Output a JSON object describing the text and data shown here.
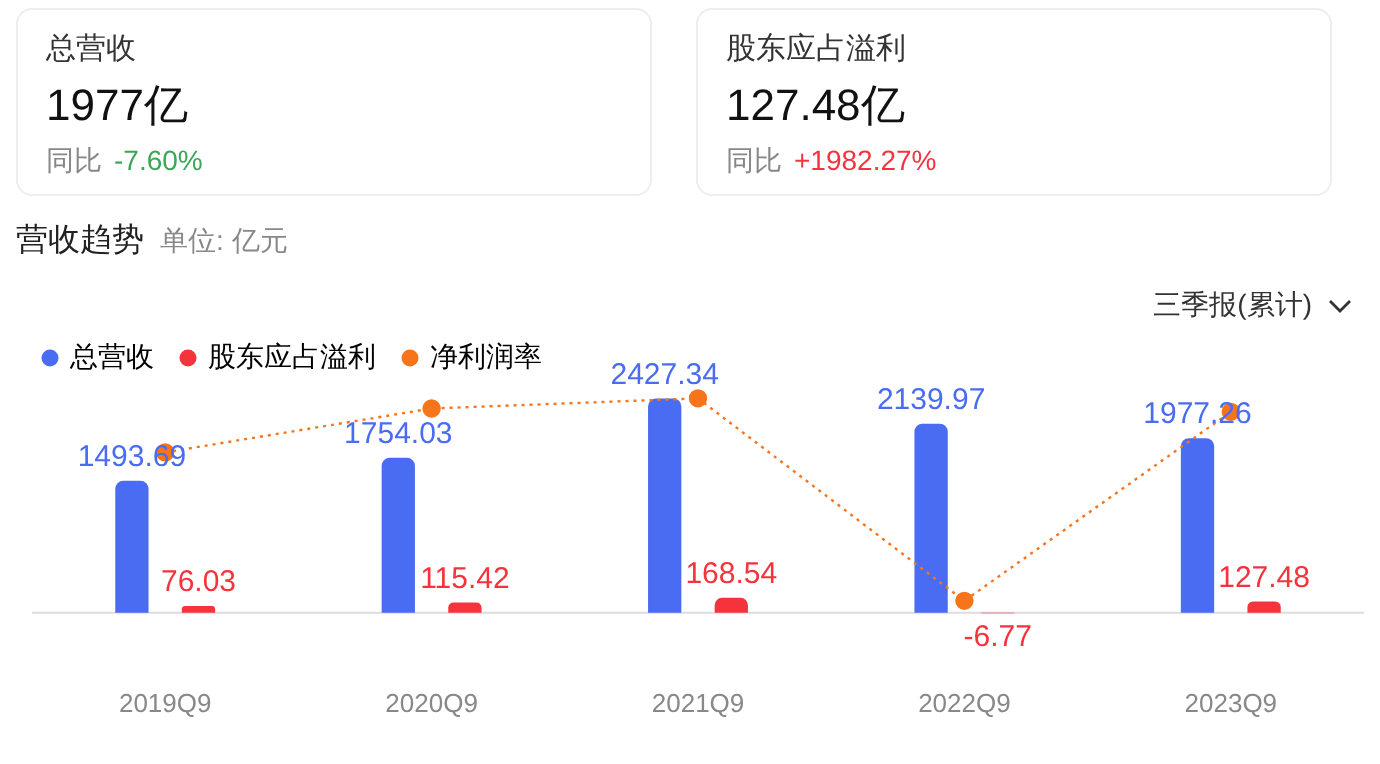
{
  "chart_data": [
    {
      "type": "other",
      "title": "总营收",
      "annotations": [
        "1977亿",
        "同比",
        "-7.60%"
      ],
      "color": "#3aa757"
    },
    {
      "type": "other",
      "title": "股东应占溢利",
      "annotations": [
        "127.48亿",
        "同比",
        "+1982.27%"
      ],
      "color": "#f5333f"
    },
    {
      "type": "bar",
      "title": "营收趋势",
      "subtitle": "单位: 亿元",
      "annotations": [
        "三季报(累计)"
      ],
      "categories": [
        "2019Q9",
        "2020Q9",
        "2021Q9",
        "2022Q9",
        "2023Q9"
      ],
      "series": [
        {
          "name": "总营收",
          "color": "#4a6cf3",
          "values": [
            1493.69,
            1754.03,
            2427.34,
            2139.97,
            1977.26
          ],
          "value_labels": [
            "1493.69",
            "1754.03",
            "2427.34",
            "2139.97",
            "1977.26"
          ]
        },
        {
          "name": "股东应占溢利",
          "color": "#f4333c",
          "values": [
            76.03,
            115.42,
            168.54,
            -6.77,
            127.48
          ],
          "value_labels": [
            "76.03",
            "115.42",
            "168.54",
            "-6.77",
            "127.48"
          ]
        },
        {
          "name": "净利润率",
          "type": "line",
          "color": "#f7751a",
          "values": [
            1816,
            2313,
            2428,
            134,
            2275
          ],
          "marker": "circle",
          "line_style": "dotted"
        }
      ],
      "tick_labels": "x",
      "grid": false,
      "legend": "top left",
      "ref_lines": [
        {
          "axis": "y",
          "value": 0,
          "color": "#dddddd"
        }
      ]
    }
  ]
}
